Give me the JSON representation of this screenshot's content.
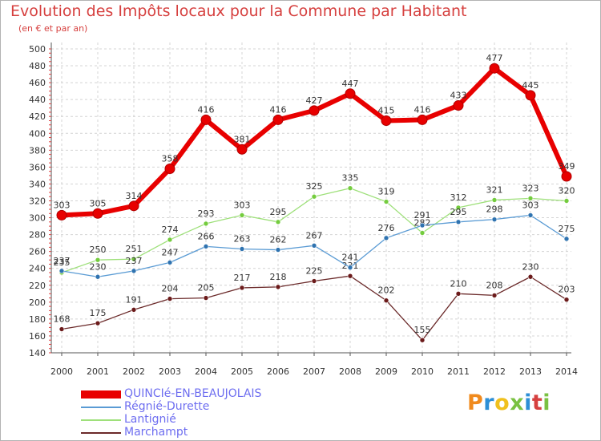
{
  "title": "Evolution des Impôts locaux pour la Commune par Habitant",
  "subtitle": "(en € et par an)",
  "brand": "Proxiti",
  "chart_data": {
    "type": "line",
    "x": [
      "2000",
      "2001",
      "2002",
      "2003",
      "2004",
      "2005",
      "2006",
      "2007",
      "2008",
      "2009",
      "2010",
      "2011",
      "2012",
      "2013",
      "2014"
    ],
    "ylim": [
      140,
      500
    ],
    "yticks": [
      "140",
      "160",
      "180",
      "200",
      "220",
      "240",
      "260",
      "280",
      "300",
      "320",
      "340",
      "360",
      "380",
      "400",
      "420",
      "440",
      "460",
      "480",
      "500"
    ],
    "grid": true,
    "legend": "bottom-left",
    "series": [
      {
        "name": "QUINCIé-EN-BEAUJOLAIS",
        "color": "#e80000",
        "marker": "#e80000",
        "values": [
          303,
          305,
          314,
          358,
          416,
          381,
          416,
          427,
          447,
          415,
          416,
          433,
          477,
          445,
          349
        ]
      },
      {
        "name": "Régnié-Durette",
        "color": "#5a9bd4",
        "marker": "#2f73b0",
        "values": [
          237,
          230,
          237,
          247,
          266,
          263,
          262,
          267,
          241,
          276,
          291,
          295,
          298,
          303,
          275
        ]
      },
      {
        "name": "Lantignié",
        "color": "#9ee07a",
        "marker": "#74cc3e",
        "values": [
          235,
          250,
          251,
          274,
          293,
          303,
          295,
          325,
          335,
          319,
          282,
          312,
          321,
          323,
          320
        ]
      },
      {
        "name": "Marchampt",
        "color": "#6b2a2a",
        "marker": "#6b1a1a",
        "values": [
          168,
          175,
          191,
          204,
          205,
          217,
          218,
          225,
          231,
          202,
          155,
          210,
          208,
          230,
          203
        ]
      }
    ]
  }
}
